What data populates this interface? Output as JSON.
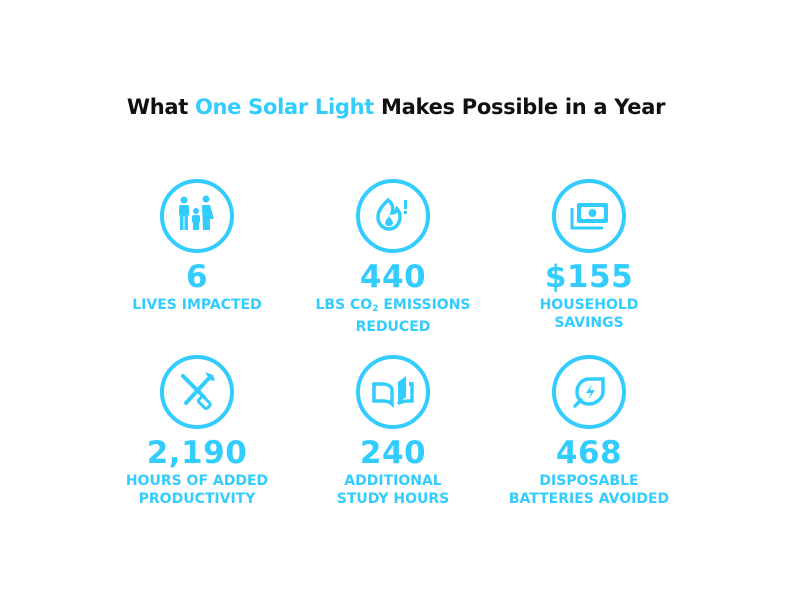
{
  "title": {
    "prefix": "What ",
    "highlight": "One Solar Light",
    "suffix": " Makes Possible in a Year"
  },
  "accent_color": "#33ccff",
  "stats": [
    {
      "icon": "family-icon",
      "value": "6",
      "label": "LIVES IMPACTED"
    },
    {
      "icon": "flame-alert-icon",
      "value": "440",
      "label_pre": "LBS CO",
      "label_sub": "2",
      "label_post": " EMISSIONS\nREDUCED"
    },
    {
      "icon": "money-icon",
      "value": "$155",
      "label": "HOUSEHOLD\nSAVINGS"
    },
    {
      "icon": "tools-icon",
      "value": "2,190",
      "label": "HOURS OF ADDED\nPRODUCTIVITY"
    },
    {
      "icon": "book-icon",
      "value": "240",
      "label": "ADDITIONAL\nSTUDY HOURS"
    },
    {
      "icon": "leaf-bolt-icon",
      "value": "468",
      "label": "DISPOSABLE\nBATTERIES AVOIDED"
    }
  ]
}
